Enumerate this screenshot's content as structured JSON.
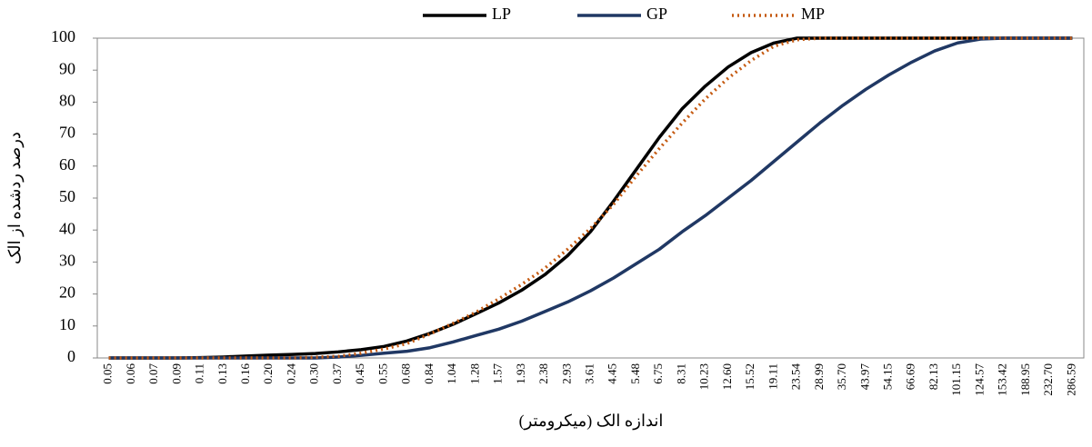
{
  "chart_data": {
    "type": "line",
    "x_label": "اندازه الک (میکرومتر)",
    "y_label": "درصد ردشده از الک",
    "categories": [
      "0.05",
      "0.06",
      "0.07",
      "0.09",
      "0.11",
      "0.13",
      "0.16",
      "0.20",
      "0.24",
      "0.30",
      "0.37",
      "0.45",
      "0.55",
      "0.68",
      "0.84",
      "1.04",
      "1.28",
      "1.57",
      "1.93",
      "2.38",
      "2.93",
      "3.61",
      "4.45",
      "5.48",
      "6.75",
      "8.31",
      "10.23",
      "12.60",
      "15.52",
      "19.11",
      "23.54",
      "28.99",
      "35.70",
      "43.97",
      "54.15",
      "66.69",
      "82.13",
      "101.15",
      "124.57",
      "153.42",
      "188.95",
      "232.70",
      "286.59"
    ],
    "series": [
      {
        "name": "LP",
        "color": "#000000",
        "dash": "solid",
        "values": [
          0,
          0,
          0,
          0,
          0.1,
          0.3,
          0.6,
          0.9,
          1.1,
          1.4,
          1.9,
          2.6,
          3.6,
          5.3,
          7.7,
          10.5,
          13.8,
          17.2,
          21.2,
          26,
          32,
          39.5,
          49,
          59,
          69,
          78,
          85,
          91,
          95.5,
          98.5,
          100,
          100,
          100,
          100,
          100,
          100,
          100,
          100,
          100,
          100,
          100,
          100,
          100
        ]
      },
      {
        "name": "GP",
        "color": "#203864",
        "dash": "solid",
        "values": [
          0,
          0,
          0,
          0,
          0,
          0,
          0,
          0,
          0,
          0,
          0.3,
          0.8,
          1.5,
          2.1,
          3.2,
          5,
          7,
          9,
          11.5,
          14.5,
          17.5,
          21,
          25,
          29.5,
          34,
          39.5,
          44.5,
          50,
          55.5,
          61.5,
          67.5,
          73.5,
          79,
          84,
          88.5,
          92.5,
          96,
          98.5,
          99.7,
          100,
          100,
          100,
          100
        ]
      },
      {
        "name": "MP",
        "color": "#c55a11",
        "dash": "dotted",
        "values": [
          0,
          0,
          0,
          0,
          0,
          0,
          0,
          0,
          0,
          0.2,
          0.5,
          1.5,
          2.8,
          4.5,
          7.5,
          10.8,
          14.3,
          18.5,
          23,
          28,
          34,
          40.5,
          48,
          57,
          65.5,
          73.5,
          81,
          87.5,
          93,
          97.5,
          99.5,
          100,
          100,
          100,
          100,
          100,
          100,
          100,
          100,
          100,
          100,
          100,
          100
        ]
      }
    ],
    "ylim": [
      0,
      100
    ],
    "yticks": [
      0,
      10,
      20,
      30,
      40,
      50,
      60,
      70,
      80,
      90,
      100
    ],
    "legend": "top",
    "grid": false
  }
}
